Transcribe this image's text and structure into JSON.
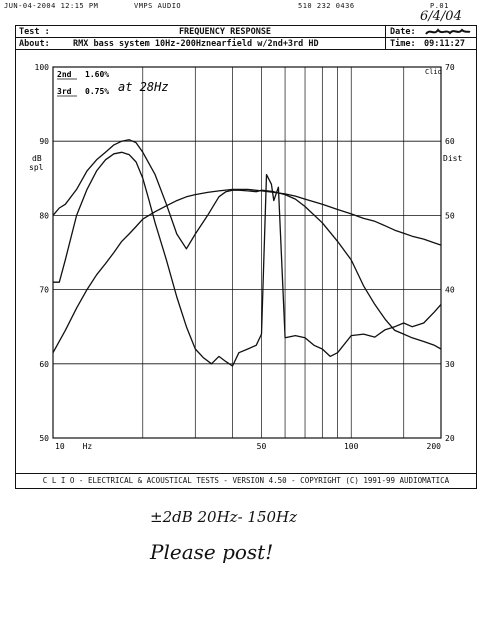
{
  "fax_header": {
    "date_time": "JUN-04-2004 12:15 PM",
    "sender": "VMPS AUDIO",
    "phone": "510 232 0436",
    "page": "P.01"
  },
  "handwritten_date": "6/4/04",
  "header": {
    "test_label": "Test :",
    "title": "FREQUENCY RESPONSE",
    "about_label": "About:",
    "about_text": "RMX bass system 10Hz-200Hznearfield w/2nd+3rd HD",
    "date_label": "Date:",
    "time_label": "Time:",
    "time_value": "09:11:27"
  },
  "legend": {
    "rows": [
      {
        "label": "2nd",
        "value": "1.60%"
      },
      {
        "label": "3rd",
        "value": "0.75%"
      }
    ],
    "annotation": "at 28Hz",
    "clio_tag": "Clio"
  },
  "chart_data": {
    "type": "line",
    "x_scale": "log",
    "xlim": [
      10,
      200
    ],
    "x_ticks": [
      "10",
      "Hz",
      "50",
      "100",
      "200"
    ],
    "left_axis": {
      "label_line1": "dB",
      "label_line2": "spl",
      "ylim": [
        50,
        100
      ],
      "ticks": [
        "100",
        "90",
        "80",
        "70",
        "60",
        "50"
      ]
    },
    "right_axis": {
      "label": "Dist",
      "ylim": [
        20,
        70
      ],
      "ticks": [
        "70",
        "60",
        "50",
        "40",
        "30",
        "20"
      ]
    },
    "grid": true,
    "series": [
      {
        "key": "response",
        "axis": "left",
        "x": [
          10,
          11,
          12,
          13,
          14,
          15,
          16,
          17,
          18,
          19,
          20,
          22,
          24,
          26,
          28,
          30,
          33,
          36,
          40,
          45,
          50,
          55,
          60,
          65,
          70,
          80,
          90,
          100,
          110,
          120,
          130,
          140,
          150,
          160,
          175,
          190,
          200
        ],
        "y": [
          61.5,
          64.5,
          67.5,
          70,
          72,
          73.5,
          75,
          76.5,
          77.5,
          78.5,
          79.5,
          80.5,
          81.3,
          82,
          82.5,
          82.8,
          83.1,
          83.3,
          83.5,
          83.5,
          83.3,
          83.1,
          82.9,
          82.6,
          82.2,
          81.5,
          80.8,
          80.2,
          79.6,
          79.2,
          78.6,
          78,
          77.6,
          77.2,
          76.8,
          76.3,
          76
        ]
      },
      {
        "key": "harmonic_upper",
        "axis": "right",
        "x": [
          10,
          10.5,
          11,
          12,
          13,
          14,
          15,
          16,
          17,
          18,
          19,
          20,
          22,
          24,
          26,
          28,
          30,
          33,
          36,
          38,
          40,
          42,
          45,
          48,
          50,
          55,
          60,
          65,
          70,
          80,
          90,
          100,
          110,
          120,
          130,
          140,
          150,
          160,
          175,
          190,
          200
        ],
        "y": [
          50,
          51,
          51.5,
          53.5,
          56,
          57.5,
          58.5,
          59.5,
          60,
          60.2,
          59.8,
          58.5,
          55.5,
          51.5,
          47.5,
          45.5,
          47.5,
          50,
          52.5,
          53.2,
          53.4,
          53.4,
          53.3,
          53.2,
          53.4,
          53.2,
          52.8,
          52.2,
          51.2,
          49,
          46.5,
          44,
          40.5,
          38,
          36,
          34.5,
          34,
          33.5,
          33,
          32.5,
          32
        ]
      },
      {
        "key": "harmonic_lower",
        "axis": "right",
        "x": [
          10,
          10.5,
          11,
          12,
          13,
          14,
          15,
          16,
          17,
          18,
          19,
          20,
          21,
          22,
          24,
          26,
          28,
          30,
          32,
          34,
          36,
          38,
          40,
          42,
          45,
          48,
          50,
          52,
          54,
          55,
          57,
          60,
          65,
          70,
          75,
          80,
          85,
          90,
          100,
          110,
          120,
          130,
          140,
          150,
          160,
          175,
          190,
          200
        ],
        "y": [
          41,
          41,
          44,
          50,
          53.5,
          56,
          57.5,
          58.3,
          58.5,
          58.2,
          57.2,
          55,
          52,
          49,
          44,
          39,
          35,
          32,
          30.8,
          30,
          31,
          30.3,
          29.7,
          31.5,
          32,
          32.5,
          34,
          55.5,
          54.2,
          52,
          53.8,
          33.5,
          33.8,
          33.5,
          32.5,
          32,
          31,
          31.5,
          33.8,
          34,
          33.6,
          34.6,
          35,
          35.5,
          35,
          35.5,
          37,
          38
        ]
      }
    ]
  },
  "footer": {
    "text": "C L I O  -  ELECTRICAL & ACOUSTICAL TESTS  -  VERSION 4.50  -  COPYRIGHT (C) 1991-99 AUDIOMATICA"
  },
  "notes": {
    "line1": "±2dB 20Hz- 150Hz",
    "line2": "Please post!"
  }
}
